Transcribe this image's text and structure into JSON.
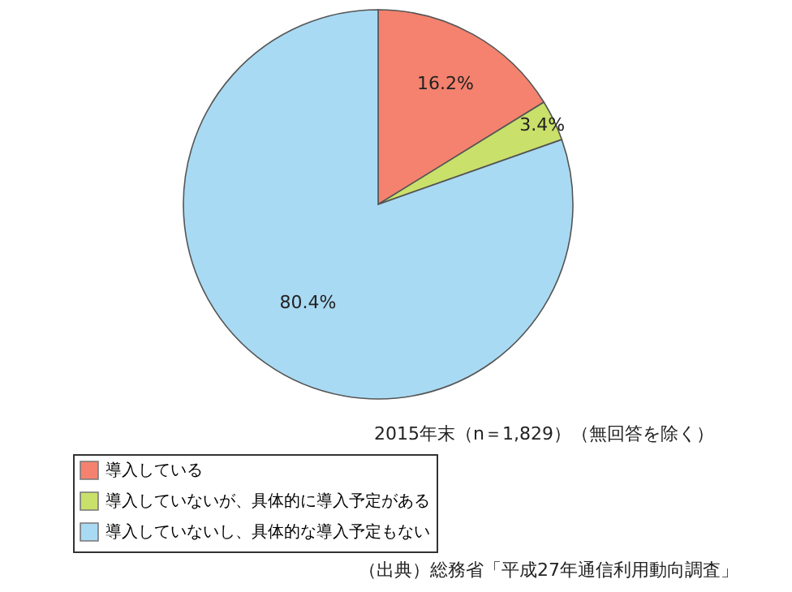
{
  "chart_data": {
    "type": "pie",
    "categories": [
      "導入している",
      "導入していないが、具体的に導入予定がある",
      "導入していないし、具体的な導入予定もない"
    ],
    "values": [
      16.2,
      3.4,
      80.4
    ],
    "colors": [
      "#f4826e",
      "#c9e06a",
      "#a9daf3"
    ],
    "value_labels": [
      "16.2%",
      "3.4%",
      "80.4%"
    ],
    "legend": "bottom",
    "annotations": [
      "2015年末（n＝1,829）（無回答を除く）",
      "（出典）総務省「平成27年通信利用動向調査」"
    ]
  }
}
